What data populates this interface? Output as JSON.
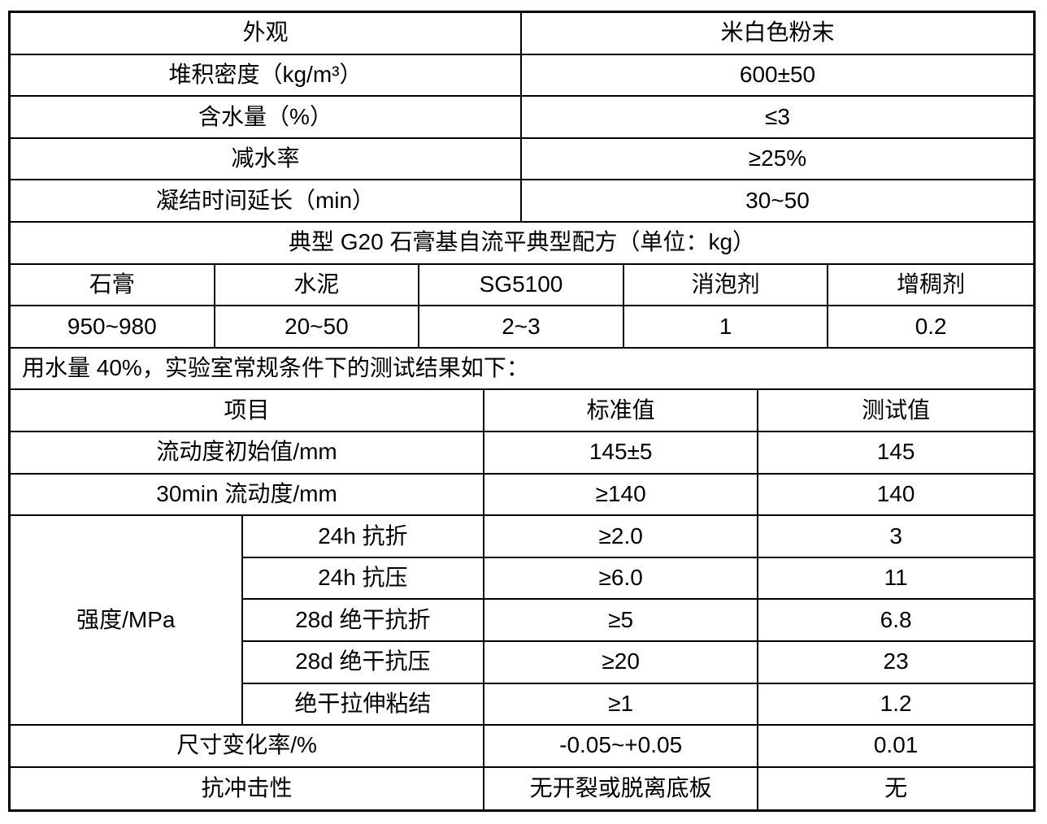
{
  "colors": {
    "text": "#000000",
    "border": "#000000",
    "background": "#ffffff"
  },
  "properties": {
    "rows": [
      {
        "label": "外观",
        "value": "米白色粉末"
      },
      {
        "label": "堆积密度（kg/m³）",
        "value": "600±50"
      },
      {
        "label": "含水量（%）",
        "value": "≤3"
      },
      {
        "label": "减水率",
        "value": "≥25%"
      },
      {
        "label": "凝结时间延长（min）",
        "value": "30~50"
      }
    ]
  },
  "formula": {
    "title": "典型 G20 石膏基自流平典型配方（单位：kg）",
    "columns": [
      "石膏",
      "水泥",
      "SG5100",
      "消泡剂",
      "增稠剂"
    ],
    "values": [
      "950~980",
      "20~50",
      "2~3",
      "1",
      "0.2"
    ]
  },
  "note": "用水量 40%，实验室常规条件下的测试结果如下：",
  "results": {
    "headers": {
      "item": "项目",
      "standard": "标准值",
      "test": "测试值"
    },
    "rows_top": [
      {
        "item": "流动度初始值/mm",
        "standard": "145±5",
        "test": "145"
      },
      {
        "item": "30min 流动度/mm",
        "standard": "≥140",
        "test": "140"
      }
    ],
    "strength_group": {
      "label": "强度/MPa",
      "rows": [
        {
          "item": "24h 抗折",
          "standard": "≥2.0",
          "test": "3"
        },
        {
          "item": "24h 抗压",
          "standard": "≥6.0",
          "test": "11"
        },
        {
          "item": "28d 绝干抗折",
          "standard": "≥5",
          "test": "6.8"
        },
        {
          "item": "28d 绝干抗压",
          "standard": "≥20",
          "test": "23"
        },
        {
          "item": "绝干拉伸粘结",
          "standard": "≥1",
          "test": "1.2"
        }
      ]
    },
    "rows_bottom": [
      {
        "item": "尺寸变化率/%",
        "standard": "-0.05~+0.05",
        "test": "0.01"
      },
      {
        "item": "抗冲击性",
        "standard": "无开裂或脱离底板",
        "test": "无"
      }
    ]
  }
}
